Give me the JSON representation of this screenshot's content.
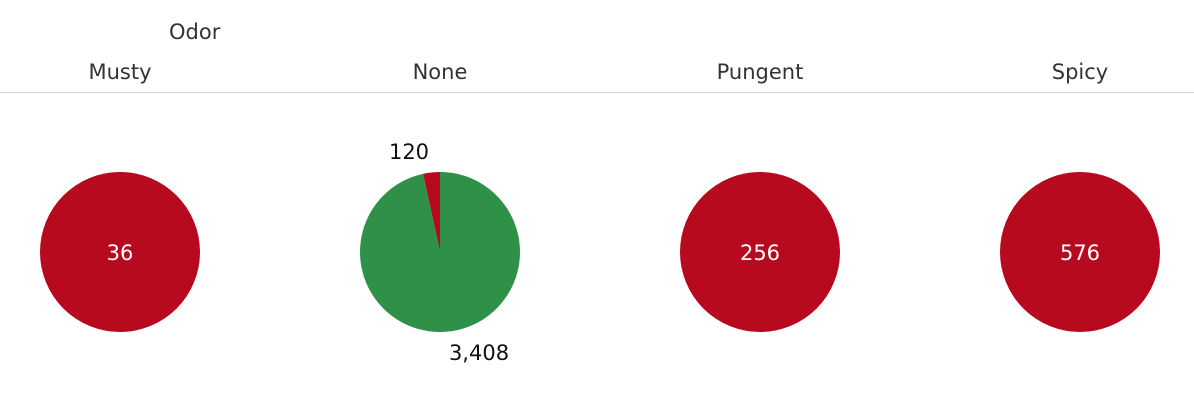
{
  "chart_data": {
    "type": "pie",
    "column_field": "Odor",
    "colors": {
      "edible": "#2f9147",
      "poisonous": "#b70a1f"
    },
    "pies": [
      {
        "category": "Musty",
        "slices": [
          {
            "color_key": "poisonous",
            "value": 36,
            "label": "36",
            "label_pos": "inside"
          }
        ]
      },
      {
        "category": "None",
        "slices": [
          {
            "color_key": "poisonous",
            "value": 120,
            "label": "120",
            "label_pos": "outside"
          },
          {
            "color_key": "edible",
            "value": 3408,
            "label": "3,408",
            "label_pos": "outside"
          }
        ]
      },
      {
        "category": "Pungent",
        "slices": [
          {
            "color_key": "poisonous",
            "value": 256,
            "label": "256",
            "label_pos": "inside"
          }
        ]
      },
      {
        "category": "Spicy",
        "slices": [
          {
            "color_key": "poisonous",
            "value": 576,
            "label": "576",
            "label_pos": "inside"
          }
        ]
      }
    ]
  }
}
